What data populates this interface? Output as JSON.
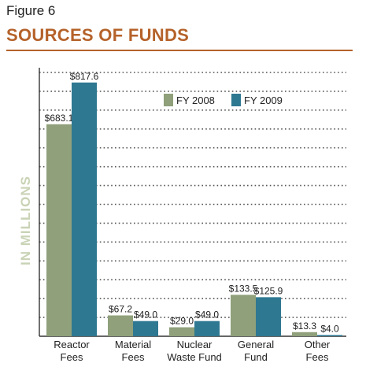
{
  "figure_label": "Figure 6",
  "chart_data": {
    "type": "bar",
    "title": "SOURCES OF FUNDS",
    "ylabel": "IN MILLIONS",
    "xlabel": "",
    "categories": [
      [
        "Reactor",
        "Fees"
      ],
      [
        "Material",
        "Fees"
      ],
      [
        "Nuclear",
        "Waste Fund"
      ],
      [
        "General",
        "Fund"
      ],
      [
        "Other",
        "Fees"
      ]
    ],
    "series": [
      {
        "name": "FY 2008",
        "color": "#8fa07a",
        "values": [
          683.1,
          67.2,
          29.0,
          133.5,
          13.3
        ],
        "labels": [
          "$683.1",
          "$67.2",
          "$29.0",
          "$133.5",
          "$13.3"
        ]
      },
      {
        "name": "FY 2009",
        "color": "#2f7891",
        "values": [
          817.6,
          49.0,
          49.0,
          125.9,
          4.0
        ],
        "labels": [
          "$817.6",
          "$49.0",
          "$49.0",
          "$125.9",
          "$4.0"
        ]
      }
    ],
    "ylim": [
      0,
      850
    ],
    "grid": true,
    "legend_position": "top-right",
    "title_color": "#b5622a"
  }
}
